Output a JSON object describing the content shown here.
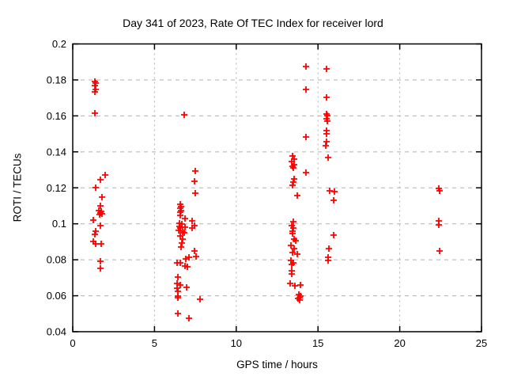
{
  "page": {
    "background": "#ffffff"
  },
  "chart_data": {
    "type": "scatter",
    "title": "Day 341 of 2023, Rate Of TEC Index for receiver lord",
    "xlabel": "GPS time / hours",
    "ylabel": "ROTI / TECUs",
    "xlim": [
      0,
      25
    ],
    "ylim": [
      0.04,
      0.2
    ],
    "xtick_labels": [
      "0",
      "5",
      "10",
      "15",
      "20",
      "25"
    ],
    "ytick_labels": [
      "0.04",
      "0.06",
      "0.08",
      "0.1",
      "0.12",
      "0.14",
      "0.16",
      "0.18",
      "0.2"
    ],
    "grid": true,
    "grid_color": "#b0b0b0",
    "axis_color": "#000000",
    "legend": "none",
    "marker": {
      "symbol": "plus",
      "color": "#ff0000",
      "size": 9
    },
    "series": [
      {
        "name": "ROTI",
        "color": "#ff0000",
        "points": [
          [
            1.35,
            0.179
          ],
          [
            1.38,
            0.178
          ],
          [
            1.35,
            0.177
          ],
          [
            1.38,
            0.1745
          ],
          [
            1.35,
            0.1735
          ],
          [
            1.35,
            0.1615
          ],
          [
            1.99,
            0.127
          ],
          [
            1.71,
            0.1245
          ],
          [
            1.39,
            0.12
          ],
          [
            1.8,
            0.115
          ],
          [
            1.71,
            0.11
          ],
          [
            1.6,
            0.1075
          ],
          [
            1.75,
            0.107
          ],
          [
            1.7,
            0.106
          ],
          [
            1.8,
            0.1055
          ],
          [
            1.65,
            0.105
          ],
          [
            1.27,
            0.102
          ],
          [
            1.71,
            0.099
          ],
          [
            1.39,
            0.096
          ],
          [
            1.35,
            0.094
          ],
          [
            1.25,
            0.09
          ],
          [
            1.4,
            0.089
          ],
          [
            1.76,
            0.089
          ],
          [
            1.71,
            0.079
          ],
          [
            1.71,
            0.075
          ],
          [
            6.83,
            0.1605
          ],
          [
            7.51,
            0.1295
          ],
          [
            7.45,
            0.1235
          ],
          [
            7.51,
            0.117
          ],
          [
            6.6,
            0.111
          ],
          [
            6.62,
            0.1095
          ],
          [
            6.58,
            0.1085
          ],
          [
            6.62,
            0.1075
          ],
          [
            6.6,
            0.1063
          ],
          [
            6.58,
            0.1048
          ],
          [
            6.87,
            0.1031
          ],
          [
            7.32,
            0.1016
          ],
          [
            6.55,
            0.1005
          ],
          [
            6.65,
            0.1
          ],
          [
            6.52,
            0.0985
          ],
          [
            6.6,
            0.0978
          ],
          [
            7.45,
            0.0992
          ],
          [
            7.32,
            0.0975
          ],
          [
            6.87,
            0.0982
          ],
          [
            6.5,
            0.0965
          ],
          [
            6.7,
            0.0955
          ],
          [
            6.83,
            0.095
          ],
          [
            6.59,
            0.0934
          ],
          [
            6.71,
            0.0916
          ],
          [
            6.67,
            0.0894
          ],
          [
            6.64,
            0.0869
          ],
          [
            7.45,
            0.085
          ],
          [
            7.55,
            0.082
          ],
          [
            7.12,
            0.0813
          ],
          [
            6.91,
            0.0806
          ],
          [
            6.38,
            0.0785
          ],
          [
            6.59,
            0.0785
          ],
          [
            6.87,
            0.0765
          ],
          [
            7.0,
            0.076
          ],
          [
            6.43,
            0.0704
          ],
          [
            6.38,
            0.067
          ],
          [
            6.59,
            0.066
          ],
          [
            6.38,
            0.0641
          ],
          [
            6.96,
            0.0645
          ],
          [
            6.43,
            0.0623
          ],
          [
            6.43,
            0.0597
          ],
          [
            6.45,
            0.059
          ],
          [
            7.8,
            0.0582
          ],
          [
            6.43,
            0.0503
          ],
          [
            7.12,
            0.0477
          ],
          [
            14.25,
            0.1875
          ],
          [
            15.54,
            0.186
          ],
          [
            14.25,
            0.1745
          ],
          [
            15.54,
            0.1702
          ],
          [
            15.5,
            0.161
          ],
          [
            15.58,
            0.16
          ],
          [
            15.52,
            0.1585
          ],
          [
            15.55,
            0.157
          ],
          [
            15.5,
            0.152
          ],
          [
            15.5,
            0.15
          ],
          [
            14.25,
            0.1485
          ],
          [
            15.5,
            0.1455
          ],
          [
            15.49,
            0.1435
          ],
          [
            15.62,
            0.137
          ],
          [
            13.45,
            0.1375
          ],
          [
            13.55,
            0.136
          ],
          [
            13.4,
            0.1345
          ],
          [
            13.55,
            0.133
          ],
          [
            13.45,
            0.132
          ],
          [
            13.5,
            0.131
          ],
          [
            14.25,
            0.1285
          ],
          [
            13.52,
            0.125
          ],
          [
            13.49,
            0.123
          ],
          [
            13.44,
            0.1215
          ],
          [
            15.7,
            0.1185
          ],
          [
            16.02,
            0.118
          ],
          [
            15.94,
            0.113
          ],
          [
            13.72,
            0.1155
          ],
          [
            13.49,
            0.1011
          ],
          [
            13.4,
            0.0988
          ],
          [
            13.5,
            0.0975
          ],
          [
            13.45,
            0.096
          ],
          [
            13.43,
            0.0945
          ],
          [
            15.97,
            0.0935
          ],
          [
            13.55,
            0.0915
          ],
          [
            13.65,
            0.0905
          ],
          [
            13.36,
            0.088
          ],
          [
            13.56,
            0.0862
          ],
          [
            13.44,
            0.0839
          ],
          [
            13.72,
            0.0832
          ],
          [
            15.65,
            0.0862
          ],
          [
            15.6,
            0.0815
          ],
          [
            15.6,
            0.0795
          ],
          [
            13.35,
            0.0795
          ],
          [
            13.5,
            0.0785
          ],
          [
            13.4,
            0.0775
          ],
          [
            13.4,
            0.074
          ],
          [
            13.4,
            0.0721
          ],
          [
            13.3,
            0.0667
          ],
          [
            13.6,
            0.0655
          ],
          [
            13.93,
            0.066
          ],
          [
            13.85,
            0.0605
          ],
          [
            13.95,
            0.06
          ],
          [
            13.9,
            0.059
          ],
          [
            13.8,
            0.0585
          ],
          [
            13.9,
            0.0575
          ],
          [
            22.4,
            0.1195
          ],
          [
            22.45,
            0.1185
          ],
          [
            22.4,
            0.1015
          ],
          [
            22.4,
            0.0995
          ],
          [
            22.44,
            0.085
          ]
        ]
      }
    ]
  }
}
